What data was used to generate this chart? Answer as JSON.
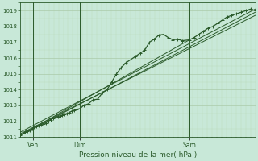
{
  "title": "Pression niveau de la mer( hPa )",
  "bg_color": "#c8e8d8",
  "plot_bg_color": "#c8e8d8",
  "outer_bg_color": "#c8e0d0",
  "grid_color_major": "#aacaaa",
  "grid_color_minor": "#bbdabb",
  "line_color": "#2a5a2a",
  "label_color": "#2a5a2a",
  "ylim": [
    1011.0,
    1019.5
  ],
  "yticks": [
    1011,
    1012,
    1013,
    1014,
    1015,
    1016,
    1017,
    1018,
    1019
  ],
  "xtick_labels": [
    "Ven",
    "Dim",
    "Sam"
  ],
  "xtick_positions": [
    0.055,
    0.255,
    0.72
  ],
  "vline_positions": [
    0.055,
    0.255,
    0.72
  ],
  "main_line_x": [
    0.0,
    0.01,
    0.02,
    0.03,
    0.04,
    0.05,
    0.055,
    0.07,
    0.08,
    0.09,
    0.1,
    0.11,
    0.12,
    0.13,
    0.14,
    0.15,
    0.16,
    0.17,
    0.18,
    0.19,
    0.2,
    0.21,
    0.22,
    0.23,
    0.24,
    0.255,
    0.27,
    0.29,
    0.31,
    0.33,
    0.35,
    0.37,
    0.39,
    0.41,
    0.43,
    0.45,
    0.47,
    0.49,
    0.51,
    0.53,
    0.55,
    0.57,
    0.59,
    0.61,
    0.63,
    0.65,
    0.67,
    0.69,
    0.72,
    0.74,
    0.76,
    0.78,
    0.8,
    0.82,
    0.84,
    0.86,
    0.88,
    0.9,
    0.92,
    0.94,
    0.96,
    0.98,
    1.0
  ],
  "main_line_y": [
    1011.1,
    1011.2,
    1011.3,
    1011.35,
    1011.4,
    1011.5,
    1011.55,
    1011.65,
    1011.7,
    1011.8,
    1011.85,
    1011.9,
    1012.0,
    1012.1,
    1012.2,
    1012.25,
    1012.3,
    1012.35,
    1012.4,
    1012.45,
    1012.5,
    1012.55,
    1012.65,
    1012.7,
    1012.75,
    1012.8,
    1013.0,
    1013.1,
    1013.35,
    1013.4,
    1013.8,
    1014.0,
    1014.5,
    1015.0,
    1015.4,
    1015.7,
    1015.9,
    1016.1,
    1016.3,
    1016.5,
    1017.0,
    1017.2,
    1017.45,
    1017.5,
    1017.3,
    1017.15,
    1017.2,
    1017.1,
    1017.15,
    1017.3,
    1017.5,
    1017.7,
    1017.9,
    1018.0,
    1018.2,
    1018.4,
    1018.6,
    1018.7,
    1018.8,
    1018.9,
    1019.0,
    1019.1,
    1019.0
  ],
  "trend_lines": [
    {
      "x": [
        0.0,
        1.0
      ],
      "y": [
        1011.1,
        1018.9
      ]
    },
    {
      "x": [
        0.0,
        0.72
      ],
      "y": [
        1011.1,
        1017.15
      ]
    },
    {
      "x": [
        0.0,
        1.0
      ],
      "y": [
        1011.3,
        1019.1
      ]
    },
    {
      "x": [
        0.0,
        1.0
      ],
      "y": [
        1011.2,
        1018.7
      ]
    }
  ]
}
